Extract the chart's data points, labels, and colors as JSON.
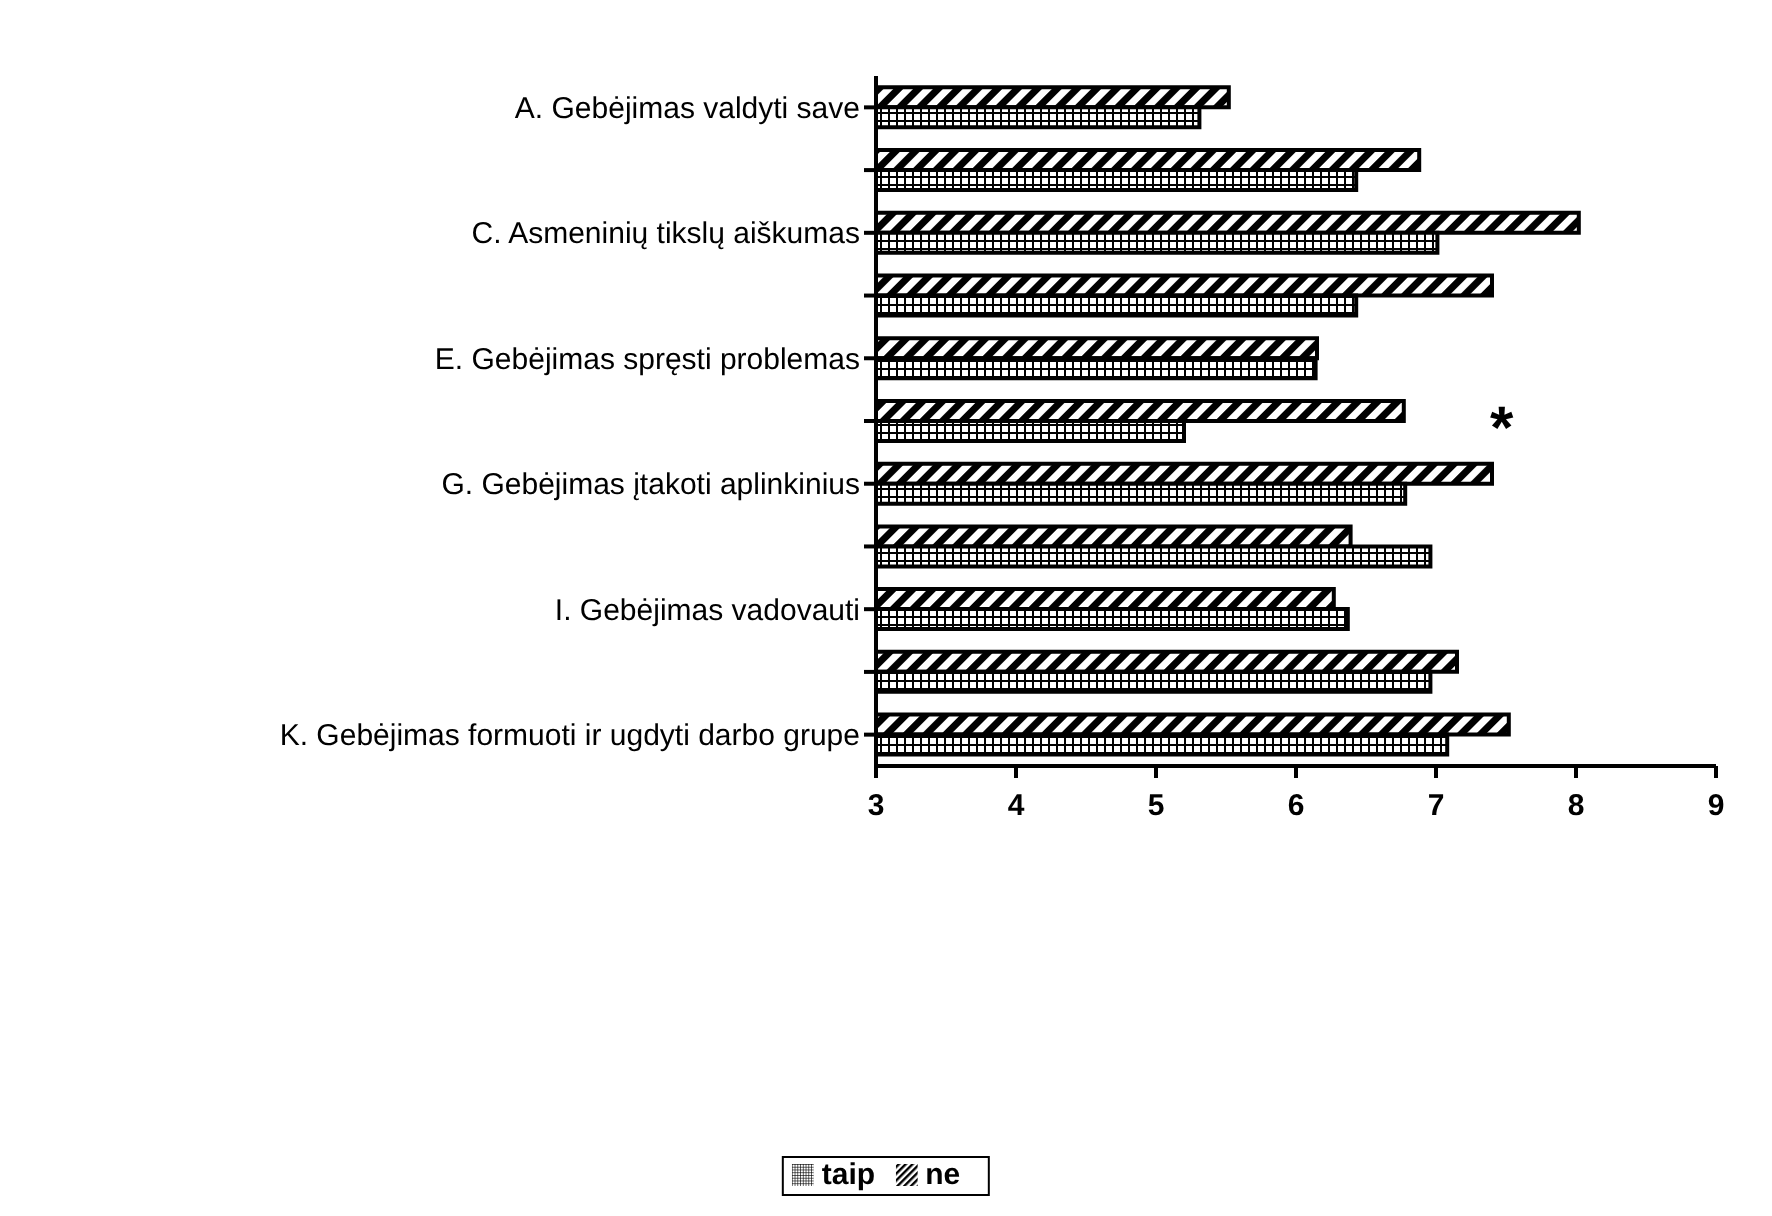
{
  "chart_data": {
    "type": "bar",
    "orientation": "horizontal",
    "categories": [
      "A. Gebėjimas valdyti save",
      null,
      "C. Asmeninių tikslų aiškumas",
      null,
      "E. Gebėjimas spręsti problemas",
      null,
      "G. Gebėjimas įtakoti aplinkinius",
      null,
      "I. Gebėjimas vadovauti",
      null,
      "K. Gebėjimas formuoti ir ugdyti darbo grupe"
    ],
    "series": [
      {
        "name": "taip",
        "color": "#000000",
        "values": [
          5.31,
          6.43,
          7.01,
          6.43,
          6.14,
          5.2,
          6.78,
          6.96,
          6.37,
          6.96,
          7.08
        ]
      },
      {
        "name": "ne",
        "color": "#000000",
        "values": [
          5.52,
          6.88,
          8.02,
          7.4,
          6.15,
          6.77,
          7.4,
          6.39,
          6.27,
          7.15,
          7.52
        ]
      }
    ],
    "xlim": [
      3,
      9
    ],
    "xticks": [
      3,
      4,
      5,
      6,
      7,
      8,
      9
    ],
    "legend": "bottom",
    "annotations": [
      "*"
    ]
  }
}
